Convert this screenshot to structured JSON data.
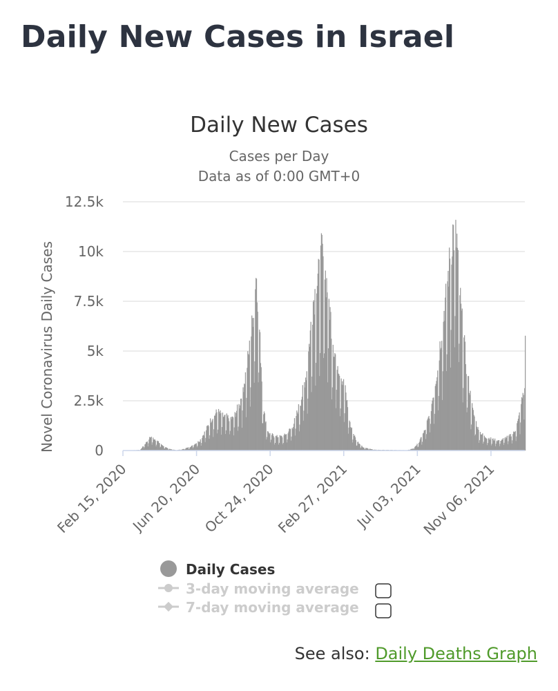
{
  "page": {
    "title": "Daily New Cases in Israel"
  },
  "see_also": {
    "label": "See also:",
    "link_text": "Daily Deaths Graph"
  },
  "colors": {
    "bar": "#999999",
    "grid": "#e6e6e6",
    "axis": "#ccd6eb",
    "legend_active": "#333333",
    "legend_inactive": "#cccccc",
    "link": "#4f9a2a"
  },
  "chart_data": {
    "type": "bar",
    "title": "Daily New Cases",
    "subtitle_line1": "Cases per Day",
    "subtitle_line2": "Data as of 0:00 GMT+0",
    "ylabel": "Novel Coronavirus Daily Cases",
    "xlabel": "",
    "ylim": [
      0,
      12500
    ],
    "y_ticks": [
      0,
      2500,
      5000,
      7500,
      10000,
      12500
    ],
    "y_tick_labels": [
      "0",
      "2.5k",
      "5k",
      "7.5k",
      "10k",
      "12.5k"
    ],
    "x_range": [
      "2020-02-15",
      "2022-01-03"
    ],
    "x_tick_dates": [
      "2020-02-15",
      "2020-06-20",
      "2020-10-24",
      "2021-02-27",
      "2021-07-03",
      "2021-11-06"
    ],
    "x_tick_labels": [
      "Feb 15, 2020",
      "Jun 20, 2020",
      "Oct 24, 2020",
      "Feb 27, 2021",
      "Jul 03, 2021",
      "Nov 06, 2021"
    ],
    "grid": true,
    "legend_position": "bottom-center",
    "series": [
      {
        "name": "Daily Cases",
        "visible": true,
        "keypoints": [
          [
            "2020-02-15",
            0
          ],
          [
            "2020-03-15",
            30
          ],
          [
            "2020-03-25",
            400
          ],
          [
            "2020-04-02",
            700
          ],
          [
            "2020-04-10",
            550
          ],
          [
            "2020-04-20",
            300
          ],
          [
            "2020-05-01",
            100
          ],
          [
            "2020-05-15",
            20
          ],
          [
            "2020-05-25",
            50
          ],
          [
            "2020-06-10",
            200
          ],
          [
            "2020-06-25",
            500
          ],
          [
            "2020-07-05",
            1000
          ],
          [
            "2020-07-15",
            1600
          ],
          [
            "2020-07-25",
            1950
          ],
          [
            "2020-08-05",
            1700
          ],
          [
            "2020-08-20",
            1600
          ],
          [
            "2020-09-01",
            2300
          ],
          [
            "2020-09-10",
            3600
          ],
          [
            "2020-09-20",
            5500
          ],
          [
            "2020-09-30",
            9000
          ],
          [
            "2020-10-05",
            6000
          ],
          [
            "2020-10-12",
            2000
          ],
          [
            "2020-10-20",
            900
          ],
          [
            "2020-11-01",
            700
          ],
          [
            "2020-11-15",
            700
          ],
          [
            "2020-12-01",
            1200
          ],
          [
            "2020-12-15",
            2500
          ],
          [
            "2020-12-25",
            4000
          ],
          [
            "2021-01-05",
            7500
          ],
          [
            "2021-01-15",
            8800
          ],
          [
            "2021-01-20",
            10000
          ],
          [
            "2021-01-30",
            8000
          ],
          [
            "2021-02-10",
            5000
          ],
          [
            "2021-02-20",
            4000
          ],
          [
            "2021-03-01",
            3000
          ],
          [
            "2021-03-10",
            1200
          ],
          [
            "2021-03-20",
            500
          ],
          [
            "2021-04-01",
            150
          ],
          [
            "2021-04-20",
            40
          ],
          [
            "2021-06-15",
            15
          ],
          [
            "2021-06-25",
            100
          ],
          [
            "2021-07-05",
            400
          ],
          [
            "2021-07-15",
            1000
          ],
          [
            "2021-07-25",
            2000
          ],
          [
            "2021-08-05",
            4000
          ],
          [
            "2021-08-15",
            6500
          ],
          [
            "2021-08-25",
            9000
          ],
          [
            "2021-09-01",
            11000
          ],
          [
            "2021-09-08",
            10500
          ],
          [
            "2021-09-15",
            7000
          ],
          [
            "2021-09-25",
            4000
          ],
          [
            "2021-10-05",
            2000
          ],
          [
            "2021-10-15",
            1000
          ],
          [
            "2021-10-25",
            700
          ],
          [
            "2021-11-10",
            550
          ],
          [
            "2021-11-20",
            500
          ],
          [
            "2021-12-05",
            700
          ],
          [
            "2021-12-15",
            900
          ],
          [
            "2021-12-22",
            1500
          ],
          [
            "2021-12-28",
            2500
          ],
          [
            "2022-01-01",
            3200
          ],
          [
            "2022-01-02",
            5500
          ]
        ]
      },
      {
        "name": "3-day moving average",
        "visible": false
      },
      {
        "name": "7-day moving average",
        "visible": false
      }
    ]
  }
}
